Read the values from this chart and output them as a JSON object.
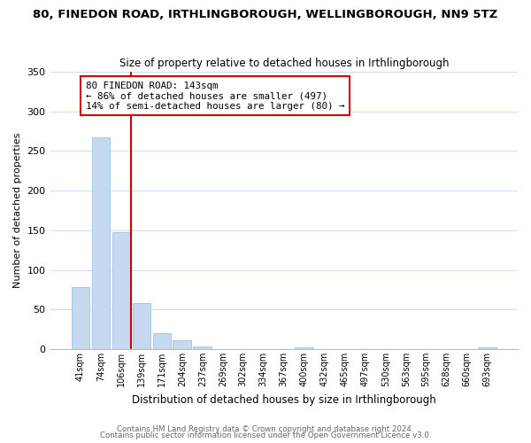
{
  "title": "80, FINEDON ROAD, IRTHLINGBOROUGH, WELLINGBOROUGH, NN9 5TZ",
  "subtitle": "Size of property relative to detached houses in Irthlingborough",
  "xlabel": "Distribution of detached houses by size in Irthlingborough",
  "ylabel": "Number of detached properties",
  "bar_labels": [
    "41sqm",
    "74sqm",
    "106sqm",
    "139sqm",
    "171sqm",
    "204sqm",
    "237sqm",
    "269sqm",
    "302sqm",
    "334sqm",
    "367sqm",
    "400sqm",
    "432sqm",
    "465sqm",
    "497sqm",
    "530sqm",
    "563sqm",
    "595sqm",
    "628sqm",
    "660sqm",
    "693sqm"
  ],
  "bar_values": [
    78,
    267,
    148,
    58,
    20,
    11,
    3,
    0,
    0,
    0,
    0,
    2,
    0,
    0,
    0,
    0,
    0,
    0,
    0,
    0,
    2
  ],
  "bar_color": "#c6d9f0",
  "bar_edge_color": "#9ec3e8",
  "vline_color": "#cc0000",
  "vline_x_index": 3,
  "annotation_title": "80 FINEDON ROAD: 143sqm",
  "annotation_line1": "← 86% of detached houses are smaller (497)",
  "annotation_line2": "14% of semi-detached houses are larger (80) →",
  "annotation_box_color": "#ffffff",
  "annotation_box_edge": "#cc0000",
  "ylim": [
    0,
    350
  ],
  "yticks": [
    0,
    50,
    100,
    150,
    200,
    250,
    300,
    350
  ],
  "footer1": "Contains HM Land Registry data © Crown copyright and database right 2024.",
  "footer2": "Contains public sector information licensed under the Open Government Licence v3.0.",
  "bg_color": "#ffffff",
  "grid_color": "#ccdff0"
}
